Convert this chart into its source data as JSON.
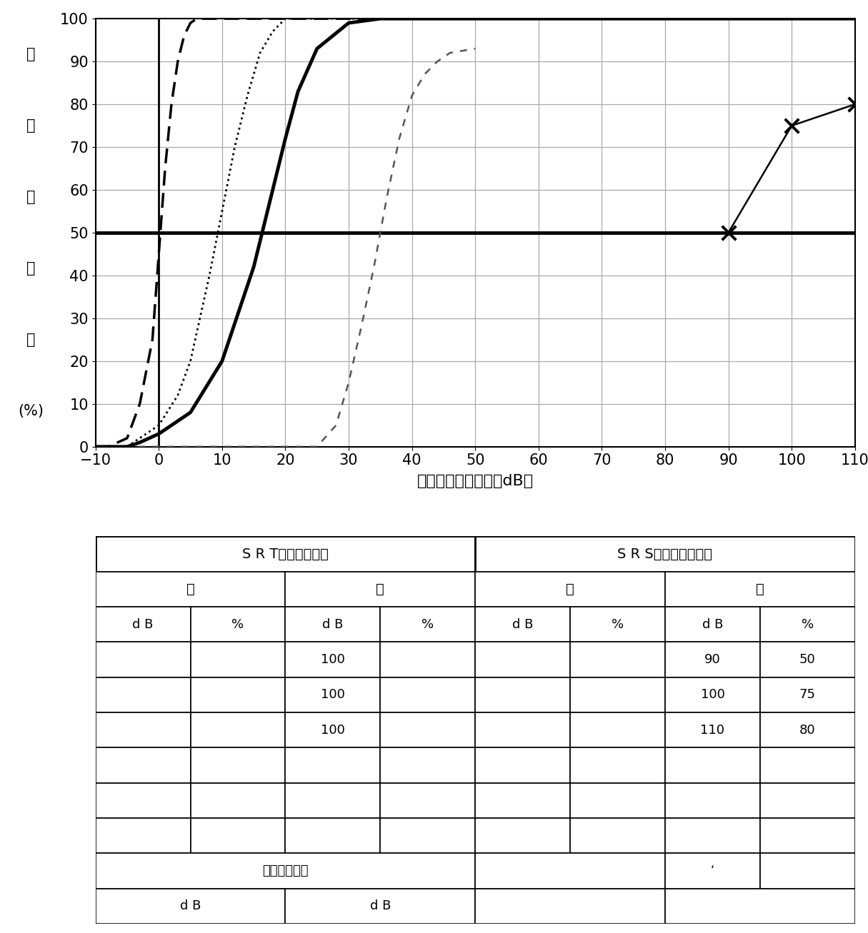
{
  "ylabel_chars": [
    "語",
    "音",
    "明",
    "瞎",
    "度",
    "(%)"
  ],
  "xlabel": "語音聴力レベル　（dB）",
  "xlim": [
    -10,
    110
  ],
  "ylim": [
    0,
    100
  ],
  "xticks": [
    -10,
    0,
    10,
    20,
    30,
    40,
    50,
    60,
    70,
    80,
    90,
    100,
    110
  ],
  "yticks": [
    0,
    10,
    20,
    30,
    40,
    50,
    60,
    70,
    80,
    90,
    100
  ],
  "hline_y": 50,
  "curve_solid_x": [
    -10,
    -8,
    -5,
    -3,
    0,
    5,
    10,
    15,
    18,
    20,
    22,
    25,
    30,
    35,
    110
  ],
  "curve_solid_y": [
    0,
    0,
    0,
    1,
    3,
    8,
    20,
    42,
    60,
    72,
    83,
    93,
    99,
    100,
    100
  ],
  "curve_dashed_x": [
    -10,
    -8,
    -5,
    -3,
    -1,
    0,
    1,
    2,
    3,
    4,
    5,
    6,
    8,
    110
  ],
  "curve_dashed_y": [
    0,
    0,
    2,
    10,
    25,
    45,
    65,
    80,
    90,
    96,
    99,
    100,
    100,
    100
  ],
  "curve_dot1_x": [
    -10,
    -5,
    -3,
    0,
    3,
    5,
    8,
    10,
    12,
    14,
    16,
    18,
    20,
    110
  ],
  "curve_dot1_y": [
    0,
    0,
    2,
    5,
    12,
    20,
    40,
    55,
    70,
    82,
    92,
    97,
    100,
    100
  ],
  "curve_dot2_x": [
    -10,
    25,
    28,
    30,
    32,
    34,
    36,
    38,
    40,
    42,
    44,
    46,
    50
  ],
  "curve_dot2_y": [
    0,
    0,
    5,
    15,
    28,
    42,
    58,
    72,
    82,
    87,
    90,
    92,
    93
  ],
  "patient_points_x": [
    90,
    100,
    110
  ],
  "patient_points_y": [
    50,
    75,
    80
  ],
  "table_srt_label": "S R T　　数字語表",
  "table_srs_label": "S R S　　単音節語表",
  "table_right": "右",
  "table_left": "左",
  "table_db": "d B",
  "table_pct": "%",
  "table_data": [
    [
      "",
      "",
      "100",
      "",
      "",
      "",
      "90",
      "50"
    ],
    [
      "",
      "",
      "100",
      "",
      "",
      "",
      "100",
      "75"
    ],
    [
      "",
      "",
      "100",
      "",
      "",
      "",
      "110",
      "80"
    ],
    [
      "",
      "",
      "",
      "",
      "",
      "",
      "",
      ""
    ],
    [
      "",
      "",
      "",
      "",
      "",
      "",
      "",
      ""
    ],
    [
      "",
      "",
      "",
      "",
      "",
      "",
      "",
      ""
    ]
  ],
  "table_footer_label": "語音聴取陰値",
  "table_footer_db1": "d B",
  "table_footer_db2": "d B",
  "tick_char": "‘"
}
